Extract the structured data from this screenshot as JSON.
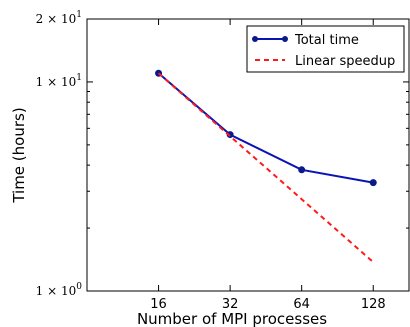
{
  "chart_data": {
    "type": "line",
    "xlabel": "Number of MPI processes",
    "ylabel": "Time (hours)",
    "x": [
      16,
      32,
      64,
      128
    ],
    "x_tick_labels": [
      "16",
      "32",
      "64",
      "128"
    ],
    "xscale": "log2",
    "xlim": [
      8,
      181
    ],
    "yscale": "log",
    "ylim": [
      1,
      20
    ],
    "y_tick_labels": [
      {
        "value": 20,
        "mantissa": "2",
        "exponent": "1"
      },
      {
        "value": 10,
        "mantissa": "1",
        "exponent": "1"
      },
      {
        "value": 1,
        "mantissa": "1",
        "exponent": "0"
      }
    ],
    "y_tick_times": "×",
    "y_tick_base": "10",
    "grid": false,
    "legend_position": "top-right",
    "series": [
      {
        "name": "Total time",
        "values": [
          11.0,
          5.6,
          3.8,
          3.3
        ],
        "color": "#0a14b4",
        "style": "solid",
        "markers": true
      },
      {
        "name": "Linear speedup",
        "values": [
          11.0,
          5.5,
          2.75,
          1.375
        ],
        "color": "#ff1a1a",
        "style": "dashed",
        "markers": false
      }
    ]
  }
}
